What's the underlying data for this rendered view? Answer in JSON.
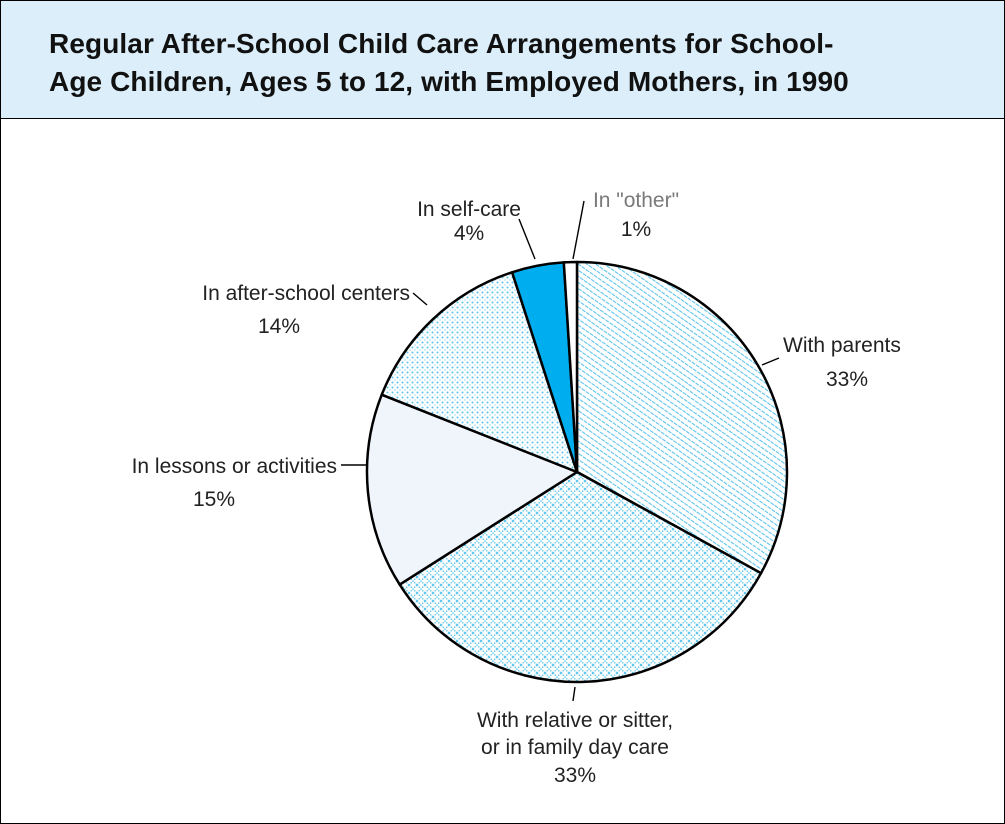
{
  "chart_data": {
    "type": "pie",
    "title_lines": [
      "Regular After-School Child Care Arrangements for School-",
      "Age Children, Ages 5 to 12, with Employed Mothers, in 1990"
    ],
    "slices": [
      {
        "name": "With parents",
        "label_lines": [
          "With parents"
        ],
        "value_label": "33%",
        "value": 33,
        "fill": "pattern-diag"
      },
      {
        "name": "With relative or sitter, or in family day care",
        "label_lines": [
          "With relative or sitter,",
          "or in family day care"
        ],
        "value_label": "33%",
        "value": 33,
        "fill": "pattern-cross"
      },
      {
        "name": "In lessons or activities",
        "label_lines": [
          "In lessons or activities"
        ],
        "value_label": "15%",
        "value": 15,
        "fill": "#f0f5fb"
      },
      {
        "name": "In after-school centers",
        "label_lines": [
          "In after-school centers"
        ],
        "value_label": "14%",
        "value": 14,
        "fill": "pattern-dots"
      },
      {
        "name": "In self-care",
        "label_lines": [
          "In self-care"
        ],
        "value_label": "4%",
        "value": 4,
        "fill": "#00aeef"
      },
      {
        "name": "In \"other\"",
        "label_lines": [
          "In \"other\""
        ],
        "value_label": "1%",
        "value": 1,
        "fill": "#ffffff"
      }
    ],
    "colors": {
      "title_background": "#dbeef9",
      "pattern_color": "#5ec4ec",
      "self_care": "#00aeef"
    }
  }
}
